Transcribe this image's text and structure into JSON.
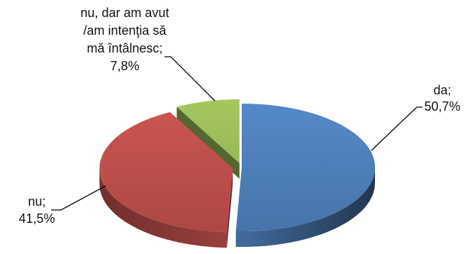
{
  "chart_data": {
    "type": "pie",
    "style": "3d",
    "legend": "none",
    "slices": [
      {
        "label_lines": [
          "da;"
        ],
        "percent_label": "50,7%",
        "value": 50.7,
        "color": "#4F81BD",
        "exploded": false
      },
      {
        "label_lines": [
          "nu;"
        ],
        "percent_label": "41,5%",
        "value": 41.5,
        "color": "#C0504D",
        "exploded": true
      },
      {
        "label_lines": [
          "nu, dar am avut",
          "/am intenţia să",
          "mă întâlnesc;"
        ],
        "percent_label": "7,8%",
        "value": 7.8,
        "color": "#9BBB59",
        "exploded": true
      }
    ]
  }
}
